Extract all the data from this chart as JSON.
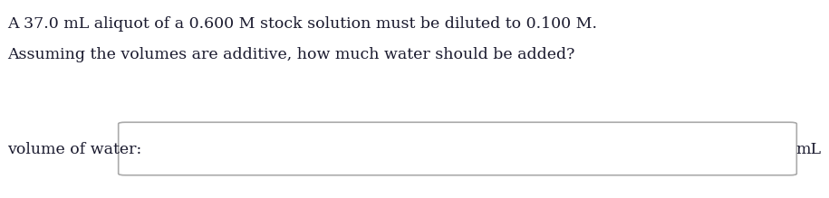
{
  "line1": "A 37.0 mL aliquot of a 0.600 M stock solution must be diluted to 0.100 M.",
  "line2": "Assuming the volumes are additive, how much water should be added?",
  "label": "volume of water:",
  "unit": "mL",
  "text_color": "#1a1a2e",
  "background_color": "#ffffff",
  "box_color": "#aaaaaa",
  "font_size_text": 12.5,
  "font_size_label": 12.5,
  "font_size_unit": 12.5
}
